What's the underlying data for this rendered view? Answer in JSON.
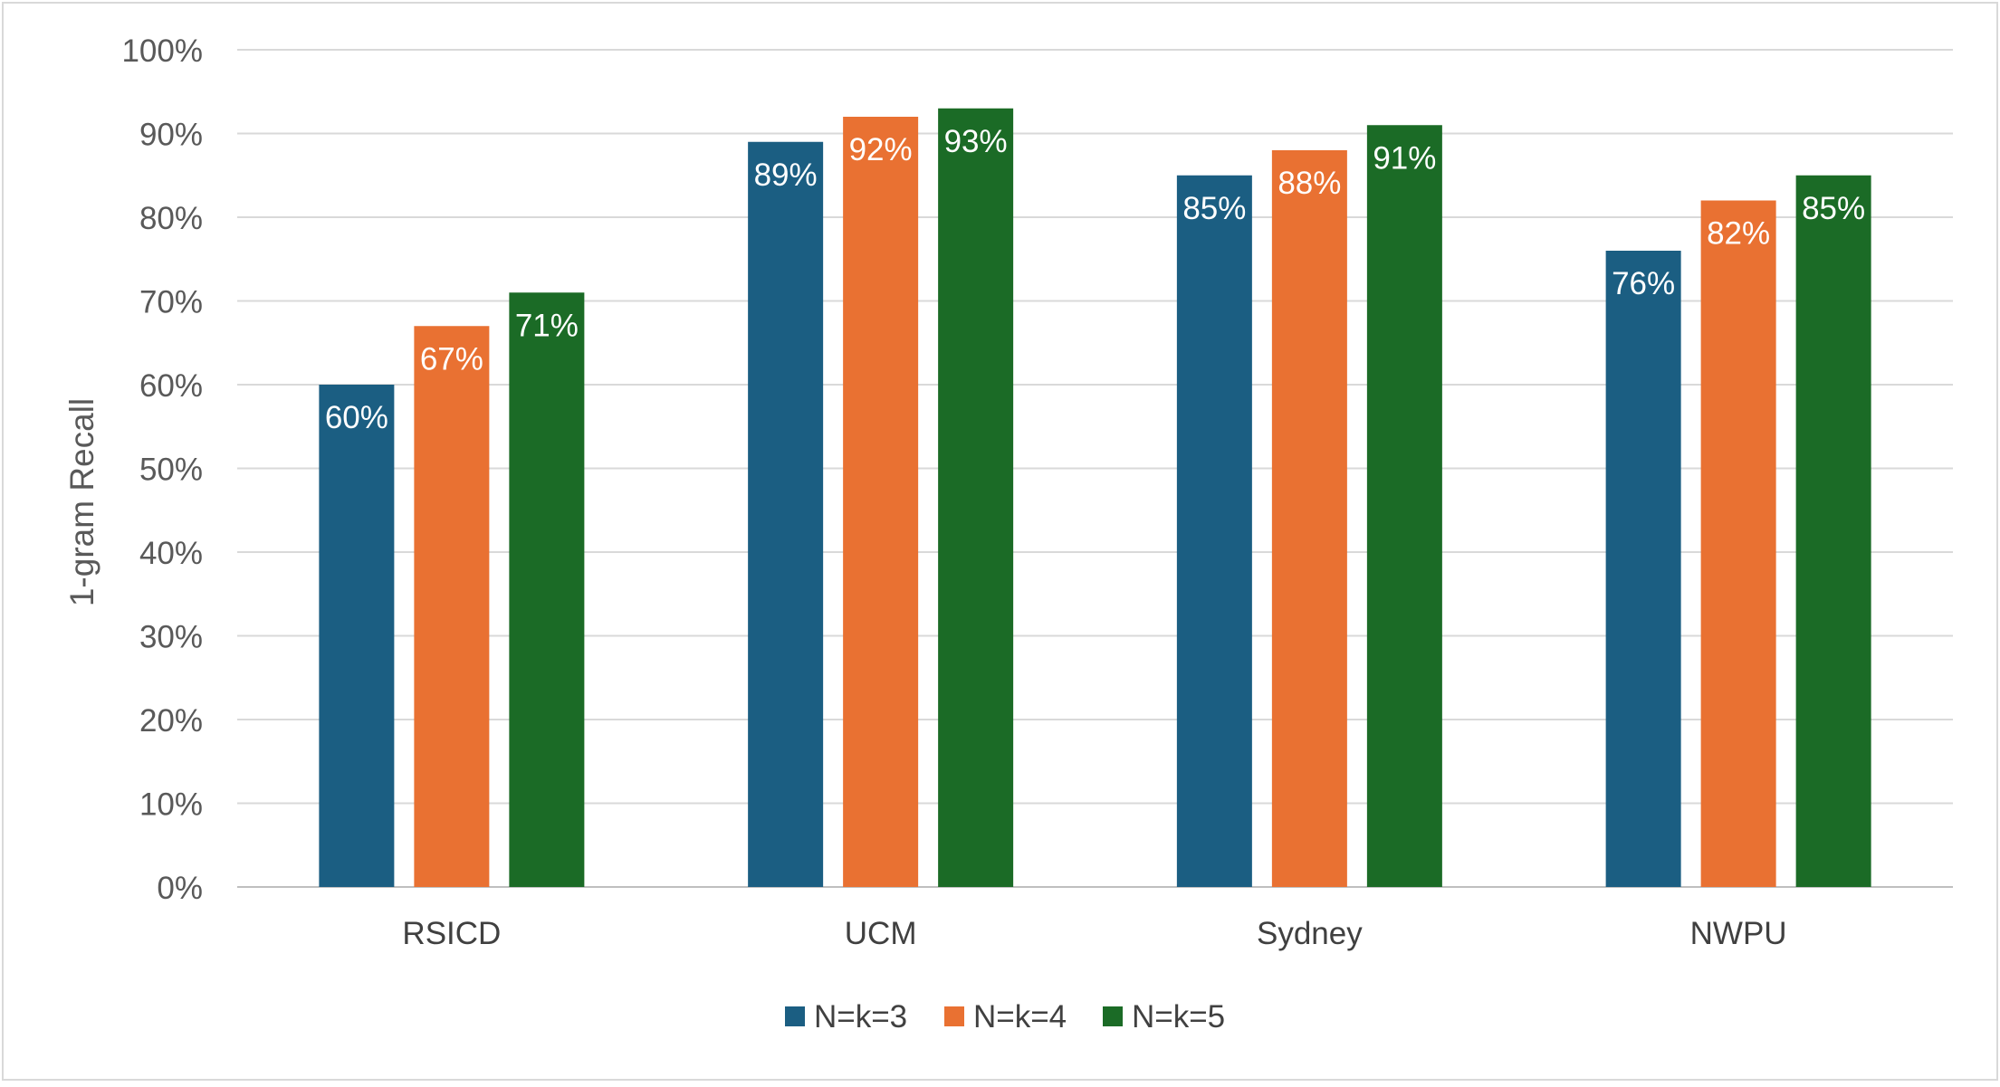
{
  "chart_data": {
    "type": "bar",
    "title": "",
    "xlabel": "",
    "ylabel": "1-gram Recall",
    "ylim": [
      0,
      100
    ],
    "ytick_labels": [
      "0%",
      "10%",
      "20%",
      "30%",
      "40%",
      "50%",
      "60%",
      "70%",
      "80%",
      "90%",
      "100%"
    ],
    "grid": true,
    "legend_position": "bottom",
    "categories": [
      "RSICD",
      "UCM",
      "Sydney",
      "NWPU"
    ],
    "series": [
      {
        "name": "N=k=3",
        "color": "#1b5e82",
        "values": [
          60,
          89,
          85,
          76
        ],
        "labels": [
          "60%",
          "89%",
          "85%",
          "76%"
        ]
      },
      {
        "name": "N=k=4",
        "color": "#e97132",
        "values": [
          67,
          92,
          88,
          82
        ],
        "labels": [
          "67%",
          "92%",
          "88%",
          "82%"
        ]
      },
      {
        "name": "N=k=5",
        "color": "#1b6b26",
        "values": [
          71,
          93,
          91,
          85
        ],
        "labels": [
          "71%",
          "93%",
          "91%",
          "85%"
        ]
      }
    ]
  }
}
